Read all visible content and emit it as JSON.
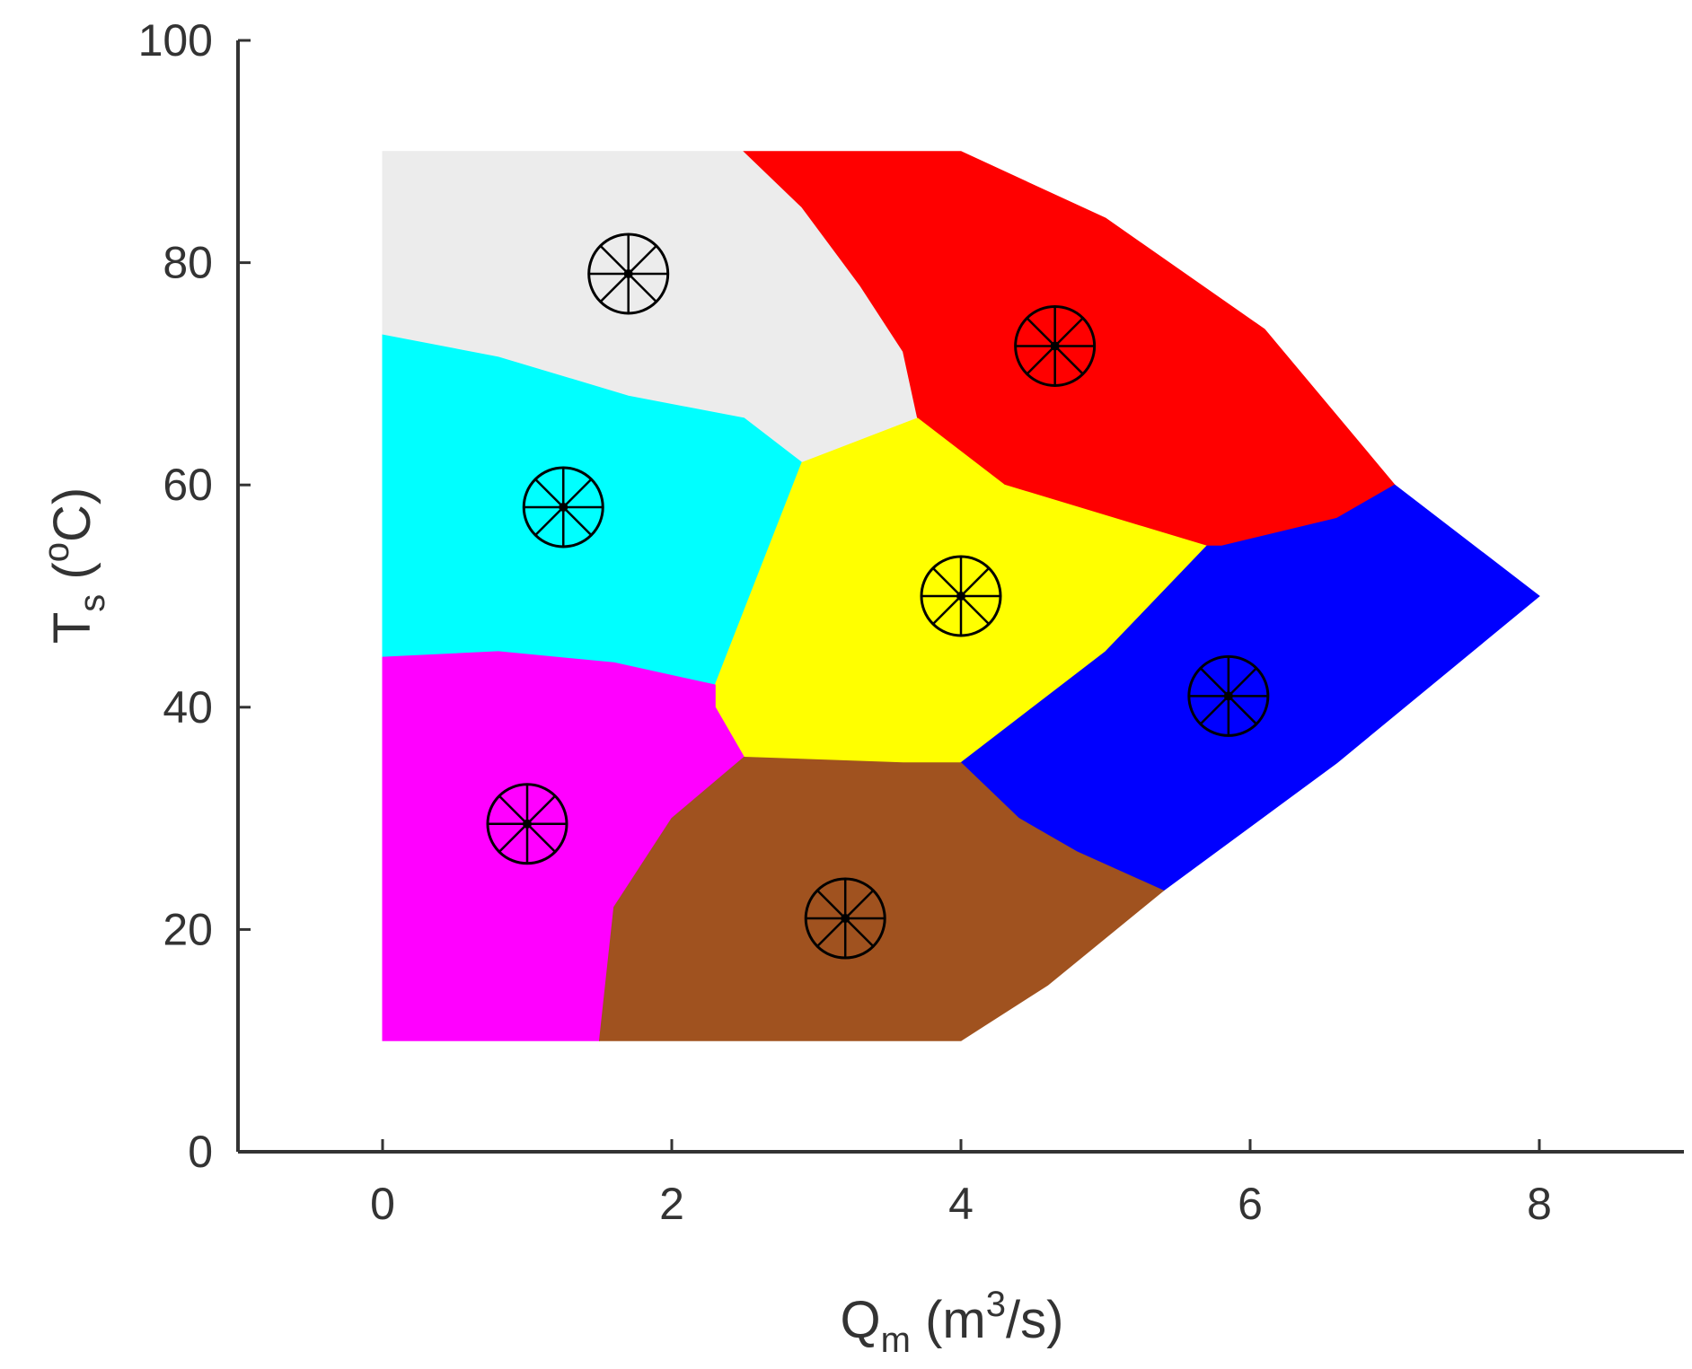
{
  "chart_data": {
    "type": "scatter",
    "title": "",
    "xlabel": {
      "main": "Q",
      "sub": "m",
      "rest": " (m",
      "sup": "3",
      "end": "/s)"
    },
    "ylabel": {
      "main": "T",
      "sub": "s",
      "rest": " (",
      "sup": "o",
      "end": "C)"
    },
    "xlim": [
      -1,
      9
    ],
    "ylim": [
      0,
      100
    ],
    "xticks": [
      0,
      2,
      4,
      6,
      8
    ],
    "yticks": [
      0,
      20,
      40,
      60,
      80,
      100
    ],
    "grid": false,
    "regions": [
      {
        "color": "#ececec",
        "polygon": [
          [
            0,
            90
          ],
          [
            2.5,
            90
          ],
          [
            2.9,
            85
          ],
          [
            3.3,
            78
          ],
          [
            3.6,
            72
          ],
          [
            3.7,
            66
          ],
          [
            2.9,
            62
          ],
          [
            2.5,
            66
          ],
          [
            1.7,
            68
          ],
          [
            0.8,
            71.5
          ],
          [
            0,
            73.5
          ]
        ]
      },
      {
        "color": "#ff0000",
        "polygon": [
          [
            2.5,
            90
          ],
          [
            4,
            90
          ],
          [
            5,
            84
          ],
          [
            6.1,
            74
          ],
          [
            7,
            60
          ],
          [
            6.6,
            57
          ],
          [
            5.8,
            54.5
          ],
          [
            5.7,
            54.5
          ],
          [
            4.3,
            60
          ],
          [
            3.7,
            66
          ],
          [
            3.6,
            72
          ],
          [
            3.3,
            78
          ],
          [
            2.9,
            85
          ]
        ]
      },
      {
        "color": "#00ffff",
        "polygon": [
          [
            0,
            73.5
          ],
          [
            0.8,
            71.5
          ],
          [
            1.7,
            68
          ],
          [
            2.5,
            66
          ],
          [
            2.9,
            62
          ],
          [
            2.6,
            52
          ],
          [
            2.3,
            42
          ],
          [
            1.6,
            44
          ],
          [
            0.8,
            45
          ],
          [
            0,
            44.5
          ]
        ]
      },
      {
        "color": "#ffff00",
        "polygon": [
          [
            2.9,
            62
          ],
          [
            3.7,
            66
          ],
          [
            4.3,
            60
          ],
          [
            5.7,
            54.5
          ],
          [
            5.0,
            45
          ],
          [
            4.0,
            35
          ],
          [
            3.6,
            35
          ],
          [
            2.5,
            35.5
          ],
          [
            2.3,
            40
          ],
          [
            2.3,
            42
          ],
          [
            2.6,
            52
          ]
        ]
      },
      {
        "color": "#0000ff",
        "polygon": [
          [
            5.7,
            54.5
          ],
          [
            5.8,
            54.5
          ],
          [
            6.6,
            57
          ],
          [
            7,
            60
          ],
          [
            8,
            50
          ],
          [
            6.6,
            35
          ],
          [
            5.4,
            23.5
          ],
          [
            4.8,
            27
          ],
          [
            4.4,
            30
          ],
          [
            4.0,
            35
          ],
          [
            5.0,
            45
          ]
        ]
      },
      {
        "color": "#ff00ff",
        "polygon": [
          [
            0,
            44.5
          ],
          [
            0.8,
            45
          ],
          [
            1.6,
            44
          ],
          [
            2.3,
            42
          ],
          [
            2.3,
            40
          ],
          [
            2.5,
            35.5
          ],
          [
            2.0,
            30
          ],
          [
            1.6,
            22
          ],
          [
            1.5,
            10
          ],
          [
            0,
            10
          ]
        ]
      },
      {
        "color": "#a0521f",
        "polygon": [
          [
            2.5,
            35.5
          ],
          [
            3.6,
            35
          ],
          [
            4.0,
            35
          ],
          [
            4.4,
            30
          ],
          [
            4.8,
            27
          ],
          [
            5.4,
            23.5
          ],
          [
            4.6,
            15
          ],
          [
            4.0,
            10
          ],
          [
            1.5,
            10
          ],
          [
            1.6,
            22
          ],
          [
            2.0,
            30
          ]
        ]
      }
    ],
    "centroids": [
      {
        "x": 1.7,
        "y": 79
      },
      {
        "x": 4.65,
        "y": 72.5
      },
      {
        "x": 1.25,
        "y": 58
      },
      {
        "x": 4.0,
        "y": 50
      },
      {
        "x": 5.85,
        "y": 41
      },
      {
        "x": 1.0,
        "y": 29.5
      },
      {
        "x": 3.2,
        "y": 21
      }
    ]
  }
}
